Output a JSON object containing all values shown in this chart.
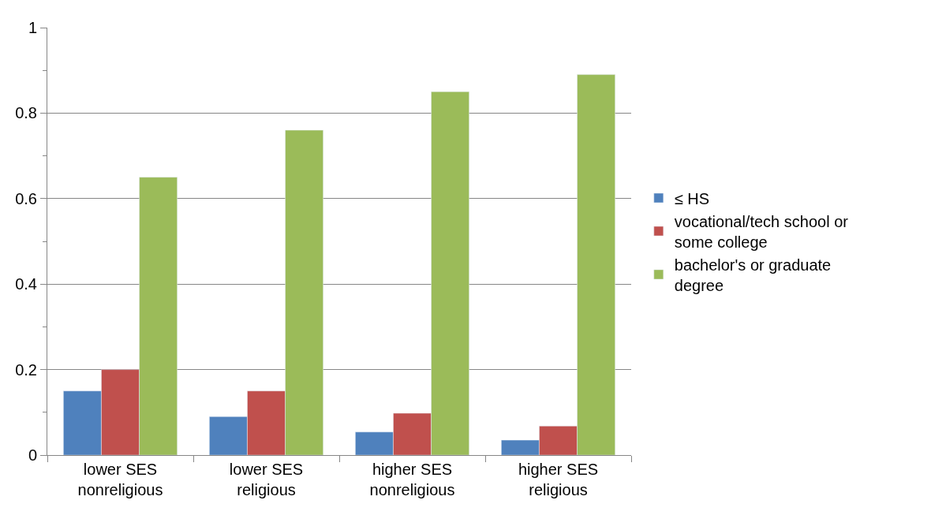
{
  "chart_data": {
    "type": "bar",
    "categories": [
      "lower SES nonreligious",
      "lower SES religious",
      "higher SES nonreligious",
      "higher SES religious"
    ],
    "series": [
      {
        "name": "≤ HS",
        "color": "#4f81bd",
        "values": [
          0.15,
          0.09,
          0.054,
          0.035
        ]
      },
      {
        "name": "vocational/tech school or some college",
        "color": "#c0504d",
        "values": [
          0.2,
          0.15,
          0.098,
          0.068
        ]
      },
      {
        "name": "bachelor's or graduate degree",
        "color": "#9bbb59",
        "values": [
          0.65,
          0.76,
          0.85,
          0.89
        ]
      }
    ],
    "ylim": [
      0,
      1
    ],
    "yticks": [
      0,
      {
        "value": 0.1,
        "label": null
      },
      0.2,
      {
        "value": 0.3,
        "label": null
      },
      0.4,
      {
        "value": 0.5,
        "label": null
      },
      0.6,
      {
        "value": 0.7,
        "label": null
      },
      0.8,
      {
        "value": 0.9,
        "label": null
      },
      1
    ],
    "grid": "y",
    "legend": "right"
  }
}
